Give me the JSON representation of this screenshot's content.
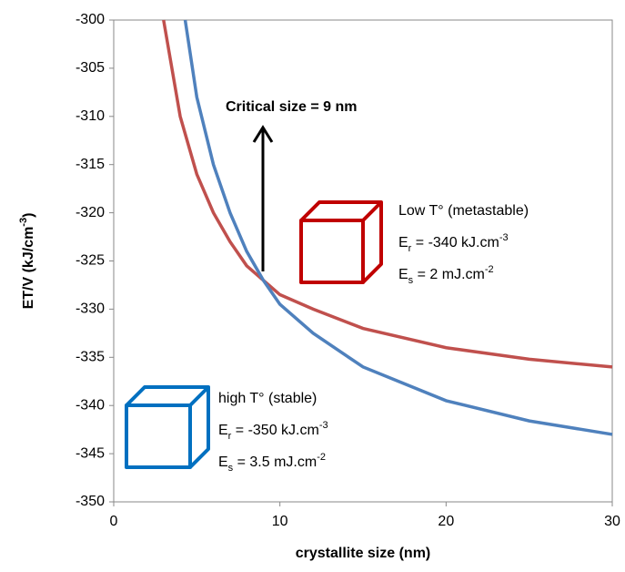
{
  "chart_data": {
    "type": "line",
    "xlabel": "crystallite size (nm)",
    "ylabel": [
      {
        "text": "ET/V (kJ/cm"
      },
      {
        "text": "-3",
        "style": "sup"
      },
      {
        "text": ")"
      }
    ],
    "xlim": [
      0,
      30
    ],
    "xticks": [
      0,
      10,
      20,
      30
    ],
    "ylim": [
      -350,
      -300
    ],
    "yticks": [
      -300,
      -305,
      -310,
      -315,
      -320,
      -325,
      -330,
      -335,
      -340,
      -345,
      -350
    ],
    "grid": false,
    "series": [
      {
        "color": "#c0504d",
        "x": [
          3,
          4,
          5,
          6,
          7,
          8,
          9,
          10,
          12,
          15,
          20,
          25,
          30
        ],
        "values": [
          -300,
          -310,
          -316,
          -320,
          -323,
          -325.5,
          -327,
          -328.5,
          -330,
          -332,
          -334,
          -335.2,
          -336
        ]
      },
      {
        "color": "#4f81bd",
        "x": [
          4.3,
          5,
          6,
          7,
          8,
          9,
          10,
          12,
          15,
          20,
          25,
          30
        ],
        "values": [
          -300,
          -308,
          -315,
          -320,
          -324,
          -327,
          -329.5,
          -332.5,
          -336,
          -339.5,
          -341.6,
          -343
        ]
      }
    ],
    "annotations": [
      {
        "color": "#000000",
        "bold": true,
        "lines": [
          [
            {
              "text": "Critical size = 9 nm"
            }
          ]
        ]
      },
      {
        "color": "#1f3b73",
        "bold": false,
        "lines": [
          [
            {
              "text": "Low T° (metastable)"
            }
          ],
          [
            {
              "text": "E"
            },
            {
              "text": "r",
              "style": "sub"
            },
            {
              "text": " = -340 kJ.cm"
            },
            {
              "text": "-3",
              "style": "sup"
            }
          ],
          [
            {
              "text": "E"
            },
            {
              "text": "s",
              "style": "sub"
            },
            {
              "text": " = 2 mJ.cm"
            },
            {
              "text": "-2",
              "style": "sup"
            }
          ]
        ]
      },
      {
        "color": "#1f3b73",
        "bold": false,
        "lines": [
          [
            {
              "text": "high T° (stable)"
            }
          ],
          [
            {
              "text": "E"
            },
            {
              "text": "r",
              "style": "sub"
            },
            {
              "text": " = -350 kJ.cm"
            },
            {
              "text": "-3",
              "style": "sup"
            }
          ],
          [
            {
              "text": "E"
            },
            {
              "text": "s",
              "style": "sub"
            },
            {
              "text": " = 3.5 mJ.cm"
            },
            {
              "text": "-2",
              "style": "sup"
            }
          ]
        ]
      }
    ]
  }
}
